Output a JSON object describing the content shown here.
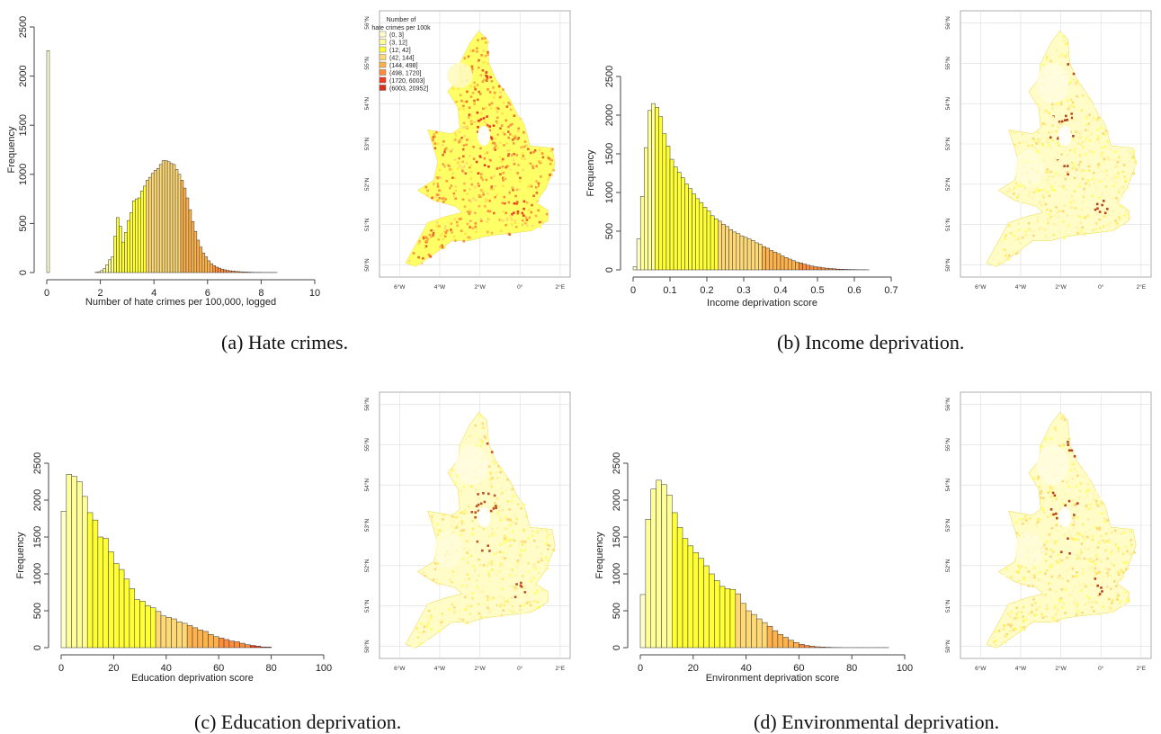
{
  "captions": {
    "a": "(a) Hate crimes.",
    "b": "(b) Income deprivation.",
    "c": "(c) Education deprivation.",
    "d": "(d) Environmental deprivation."
  },
  "colors": {
    "bins": [
      "#ffffcc",
      "#ffff99",
      "#ffff33",
      "#fed976",
      "#feb24c",
      "#fd8d3c",
      "#f03b20",
      "#d7301f"
    ],
    "map_grid": "#dcdcdc",
    "axis": "#444444"
  },
  "map_axes": {
    "lat_ticks": [
      "50°N",
      "51°N",
      "52°N",
      "53°N",
      "54°N",
      "55°N",
      "56°N"
    ],
    "lon_ticks": [
      "6°W",
      "4°W",
      "2°W",
      "0°",
      "2°E"
    ]
  },
  "map_legend": {
    "title": [
      "Number of",
      "hate crimes per 100k"
    ],
    "entries": [
      "(0, 3]",
      "(3, 12]",
      "(12, 42]",
      "(42, 144]",
      "(144, 498]",
      "(498, 1720]",
      "(1720, 6003]",
      "(6003, 20952]"
    ]
  },
  "chart_data": [
    {
      "id": "a-hist",
      "type": "bar",
      "xlabel": "Number of hate crimes per 100,000, logged",
      "ylabel": "Frequency",
      "xlim": [
        0,
        10
      ],
      "ylim": [
        0,
        2500
      ],
      "xticks": [
        0,
        2,
        4,
        6,
        8,
        10
      ],
      "yticks": [
        0,
        500,
        1000,
        1500,
        2000,
        2500
      ],
      "bin_width": 0.1,
      "bin_start": 0,
      "values": [
        2260,
        0,
        0,
        0,
        0,
        0,
        0,
        0,
        0,
        0,
        0,
        0,
        0,
        0,
        0,
        0,
        0,
        0,
        3,
        8,
        20,
        40,
        80,
        130,
        160,
        370,
        560,
        470,
        310,
        410,
        530,
        610,
        730,
        750,
        760,
        830,
        880,
        940,
        970,
        1010,
        1040,
        1060,
        1100,
        1140,
        1140,
        1130,
        1110,
        1100,
        1050,
        1000,
        940,
        860,
        760,
        640,
        520,
        420,
        330,
        260,
        200,
        160,
        120,
        90,
        70,
        55,
        45,
        35,
        28,
        22,
        18,
        15,
        12,
        10,
        8,
        6,
        5,
        4,
        3,
        2,
        2,
        2,
        1,
        1,
        1,
        1,
        1,
        1,
        0,
        0,
        0,
        0,
        0,
        0,
        0,
        0,
        0,
        0,
        0,
        0,
        0,
        0
      ],
      "color_breaks": [
        1.1,
        2.5,
        3.7,
        5.0,
        6.2,
        7.4,
        8.7
      ]
    },
    {
      "id": "b-hist",
      "type": "bar",
      "xlabel": "Income deprivation score",
      "ylabel": "Frequency",
      "xlim": [
        0,
        0.7
      ],
      "ylim": [
        0,
        2500
      ],
      "xticks": [
        "0",
        "0.1",
        "0.2",
        "0.3",
        "0.4",
        "0.5",
        "0.6",
        "0.7"
      ],
      "yticks": [
        0,
        500,
        1000,
        1500,
        2000,
        2500
      ],
      "bin_width": 0.01,
      "bin_start": 0,
      "values": [
        40,
        400,
        950,
        1580,
        2060,
        2150,
        2100,
        1980,
        1760,
        1600,
        1430,
        1330,
        1260,
        1190,
        1110,
        1050,
        980,
        920,
        870,
        810,
        760,
        700,
        660,
        630,
        590,
        560,
        520,
        490,
        470,
        440,
        420,
        400,
        380,
        350,
        330,
        300,
        280,
        250,
        230,
        210,
        180,
        160,
        140,
        120,
        100,
        90,
        75,
        60,
        50,
        40,
        35,
        28,
        22,
        18,
        14,
        10,
        8,
        6,
        5,
        4,
        3,
        2,
        2,
        1
      ],
      "color_breaks": [
        0.02,
        0.06,
        0.23,
        0.35,
        0.45,
        0.55,
        0.62
      ]
    },
    {
      "id": "c-hist",
      "type": "bar",
      "xlabel": "Education deprivation score",
      "ylabel": "Frequency",
      "xlim": [
        0,
        100
      ],
      "ylim": [
        0,
        2500
      ],
      "xticks": [
        0,
        20,
        40,
        60,
        80,
        100
      ],
      "yticks": [
        0,
        500,
        1000,
        1500,
        2000,
        2500
      ],
      "bin_width": 2,
      "bin_start": 0,
      "values": [
        1850,
        2350,
        2320,
        2250,
        2050,
        1830,
        1730,
        1500,
        1480,
        1300,
        1140,
        1060,
        930,
        800,
        650,
        630,
        570,
        540,
        490,
        430,
        410,
        390,
        350,
        330,
        300,
        270,
        240,
        220,
        180,
        150,
        130,
        110,
        90,
        80,
        60,
        40,
        30,
        20,
        10,
        8
      ],
      "color_breaks": [
        2,
        10,
        36,
        48,
        60,
        72,
        86
      ]
    },
    {
      "id": "d-hist",
      "type": "bar",
      "xlabel": "Environment deprivation score",
      "ylabel": "Frequency",
      "xlim": [
        0,
        100
      ],
      "ylim": [
        0,
        2500
      ],
      "xticks": [
        0,
        20,
        40,
        60,
        80,
        100
      ],
      "yticks": [
        0,
        500,
        1000,
        1500,
        2000,
        2500
      ],
      "bin_width": 2,
      "bin_start": 0,
      "values": [
        720,
        1740,
        2150,
        2270,
        2210,
        2070,
        1830,
        1630,
        1480,
        1380,
        1290,
        1210,
        1110,
        1000,
        910,
        830,
        800,
        790,
        730,
        600,
        500,
        450,
        390,
        340,
        290,
        230,
        180,
        140,
        100,
        70,
        45,
        30,
        20,
        12,
        8,
        5,
        3,
        2,
        1,
        1,
        1,
        1,
        1,
        1,
        1,
        1,
        1
      ],
      "color_breaks": [
        2,
        12,
        36,
        48,
        60,
        72,
        86
      ]
    }
  ]
}
